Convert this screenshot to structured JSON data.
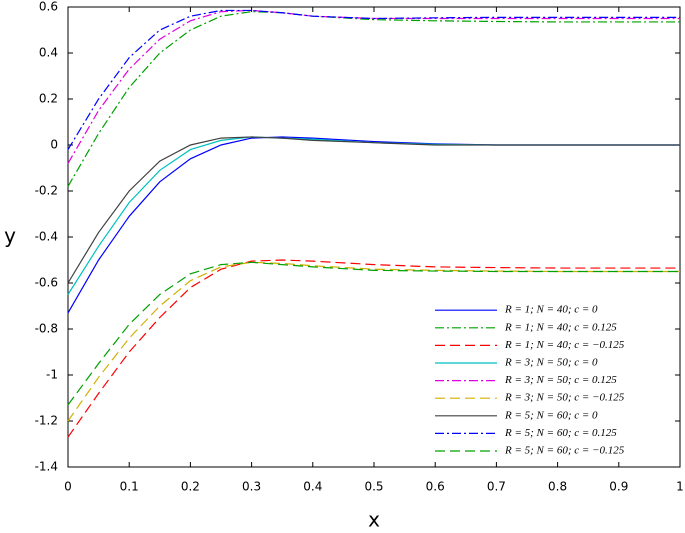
{
  "chart_data": {
    "type": "line",
    "x_label": "x",
    "y_label": "y",
    "x": [
      0,
      0.05,
      0.1,
      0.15,
      0.2,
      0.25,
      0.3,
      0.35,
      0.4,
      0.5,
      0.6,
      0.7,
      0.8,
      0.9,
      1
    ],
    "xlim": [
      0,
      1
    ],
    "ylim": [
      -1.4,
      0.6
    ],
    "xticks": [
      0,
      0.1,
      0.2,
      0.3,
      0.4,
      0.5,
      0.6,
      0.7,
      0.8,
      0.9,
      1
    ],
    "yticks": [
      -1.4,
      -1.2,
      -1,
      -0.8,
      -0.6,
      -0.4,
      -0.2,
      0,
      0.2,
      0.4,
      0.6
    ],
    "legend": "lower right",
    "series": [
      {
        "name": "R = 1; N = 40; c = 0",
        "color": "#0000ff",
        "style": "solid",
        "values": [
          -0.73,
          -0.5,
          -0.31,
          -0.16,
          -0.06,
          0.0,
          0.03,
          0.035,
          0.03,
          0.015,
          0.005,
          0,
          0,
          0,
          0
        ]
      },
      {
        "name": "R = 1; N = 40; c = 0.125",
        "color": "#00a000",
        "style": "dashdot",
        "values": [
          -0.18,
          0.05,
          0.25,
          0.4,
          0.5,
          0.56,
          0.58,
          0.575,
          0.56,
          0.545,
          0.54,
          0.537,
          0.535,
          0.535,
          0.535
        ]
      },
      {
        "name": "R = 1; N = 40; c = −0.125",
        "color": "#ff0000",
        "style": "dashed",
        "values": [
          -1.27,
          -1.08,
          -0.9,
          -0.75,
          -0.62,
          -0.54,
          -0.505,
          -0.5,
          -0.505,
          -0.52,
          -0.53,
          -0.533,
          -0.535,
          -0.535,
          -0.535
        ]
      },
      {
        "name": "R = 3; N = 50; c = 0",
        "color": "#00c0c0",
        "style": "solid",
        "values": [
          -0.65,
          -0.44,
          -0.25,
          -0.11,
          -0.02,
          0.02,
          0.035,
          0.03,
          0.025,
          0.01,
          0.003,
          0,
          0,
          0,
          0
        ]
      },
      {
        "name": "R = 3; N = 50; c = 0.125",
        "color": "#e000e0",
        "style": "dashdot",
        "values": [
          -0.08,
          0.15,
          0.33,
          0.46,
          0.54,
          0.58,
          0.585,
          0.575,
          0.56,
          0.55,
          0.55,
          0.55,
          0.55,
          0.55,
          0.55
        ]
      },
      {
        "name": "R = 3; N = 50; c = −0.125",
        "color": "#d0b000",
        "style": "dashed",
        "values": [
          -1.2,
          -1.01,
          -0.84,
          -0.7,
          -0.59,
          -0.53,
          -0.51,
          -0.515,
          -0.525,
          -0.54,
          -0.545,
          -0.548,
          -0.55,
          -0.55,
          -0.55
        ]
      },
      {
        "name": "R = 5; N = 60; c = 0",
        "color": "#404040",
        "style": "solid",
        "values": [
          -0.6,
          -0.38,
          -0.2,
          -0.07,
          0.0,
          0.03,
          0.035,
          0.03,
          0.02,
          0.01,
          0.0,
          0,
          0,
          0,
          0
        ]
      },
      {
        "name": "R = 5; N = 60; c = 0.125",
        "color": "#0000ff",
        "style": "dashdot",
        "values": [
          -0.02,
          0.2,
          0.38,
          0.5,
          0.56,
          0.585,
          0.585,
          0.575,
          0.56,
          0.55,
          0.553,
          0.555,
          0.555,
          0.555,
          0.555
        ]
      },
      {
        "name": "R = 5; N = 60; c = −0.125",
        "color": "#00a000",
        "style": "dashed",
        "values": [
          -1.13,
          -0.95,
          -0.78,
          -0.65,
          -0.56,
          -0.52,
          -0.51,
          -0.52,
          -0.53,
          -0.545,
          -0.548,
          -0.55,
          -0.55,
          -0.55,
          -0.55
        ]
      }
    ]
  }
}
